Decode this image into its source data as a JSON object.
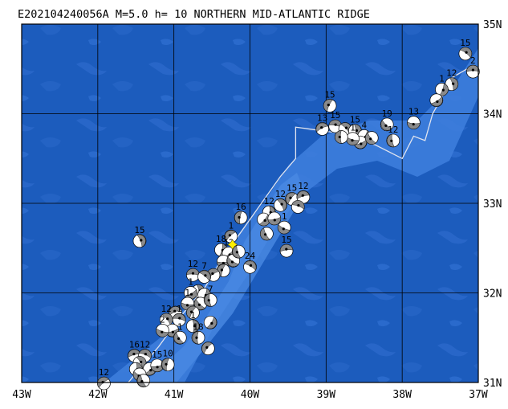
{
  "title": "E202104240056A M=5.0 h= 10 NORTHERN MID-ATLANTIC RIDGE",
  "map": {
    "lon_range": [
      -43,
      -37
    ],
    "lat_range": [
      31,
      35
    ],
    "colors": {
      "ocean_deep": "#1c5cbd",
      "ocean_shallow": "#3d7ddc",
      "grid": "#000000",
      "ridge": "#e0e4ef",
      "epicenter": "#ffef00"
    },
    "lon_ticks": [
      {
        "lon": -43,
        "label": "43W"
      },
      {
        "lon": -42,
        "label": "42W"
      },
      {
        "lon": -41,
        "label": "41W"
      },
      {
        "lon": -40,
        "label": "40W"
      },
      {
        "lon": -39,
        "label": "39W"
      },
      {
        "lon": -38,
        "label": "38W"
      },
      {
        "lon": -37,
        "label": "37W"
      }
    ],
    "lat_ticks": [
      {
        "lat": 35,
        "label": "35N"
      },
      {
        "lat": 34,
        "label": "34N"
      },
      {
        "lat": 33,
        "label": "33N"
      },
      {
        "lat": 32,
        "label": "32N"
      },
      {
        "lat": 31,
        "label": "31N"
      }
    ],
    "ridge_line": [
      [
        -41.6,
        31.0
      ],
      [
        -41.2,
        31.4
      ],
      [
        -40.9,
        31.75
      ],
      [
        -40.6,
        32.05
      ],
      [
        -40.35,
        32.4
      ],
      [
        -40.1,
        32.7
      ],
      [
        -39.85,
        33.0
      ],
      [
        -39.6,
        33.3
      ],
      [
        -39.4,
        33.5
      ],
      [
        -39.4,
        33.85
      ],
      [
        -38.8,
        33.78
      ],
      [
        -38.35,
        33.65
      ],
      [
        -38.0,
        33.5
      ],
      [
        -37.85,
        33.75
      ],
      [
        -37.7,
        33.7
      ],
      [
        -37.6,
        34.0
      ],
      [
        -37.5,
        34.15
      ],
      [
        -37.35,
        34.4
      ],
      [
        -37.15,
        34.5
      ]
    ],
    "epicenter": {
      "lon": -40.23,
      "lat": 32.54
    },
    "events": [
      {
        "lon": -37.07,
        "lat": 34.47,
        "label": "2"
      },
      {
        "lon": -37.17,
        "lat": 34.67,
        "label": "15"
      },
      {
        "lon": -37.35,
        "lat": 34.33,
        "label": "12"
      },
      {
        "lon": -37.48,
        "lat": 34.27,
        "label": "1"
      },
      {
        "lon": -37.55,
        "lat": 34.15,
        "label": ""
      },
      {
        "lon": -37.85,
        "lat": 33.9,
        "label": "13"
      },
      {
        "lon": -38.2,
        "lat": 33.88,
        "label": "19"
      },
      {
        "lon": -38.12,
        "lat": 33.7,
        "label": "12"
      },
      {
        "lon": -38.95,
        "lat": 34.09,
        "label": "15"
      },
      {
        "lon": -39.05,
        "lat": 33.83,
        "label": "13"
      },
      {
        "lon": -38.88,
        "lat": 33.86,
        "label": "15"
      },
      {
        "lon": -38.75,
        "lat": 33.83,
        "label": ""
      },
      {
        "lon": -38.62,
        "lat": 33.81,
        "label": "15"
      },
      {
        "lon": -38.5,
        "lat": 33.75,
        "label": "4"
      },
      {
        "lon": -38.55,
        "lat": 33.68,
        "label": ""
      },
      {
        "lon": -38.65,
        "lat": 33.72,
        "label": "1"
      },
      {
        "lon": -38.4,
        "lat": 33.73,
        "label": ""
      },
      {
        "lon": -38.8,
        "lat": 33.74,
        "label": ""
      },
      {
        "lon": -39.45,
        "lat": 33.05,
        "label": "15"
      },
      {
        "lon": -39.3,
        "lat": 33.07,
        "label": "12"
      },
      {
        "lon": -39.37,
        "lat": 32.96,
        "label": ""
      },
      {
        "lon": -39.6,
        "lat": 32.98,
        "label": "12"
      },
      {
        "lon": -39.75,
        "lat": 32.9,
        "label": "12"
      },
      {
        "lon": -39.82,
        "lat": 32.82,
        "label": ""
      },
      {
        "lon": -39.68,
        "lat": 32.83,
        "label": ""
      },
      {
        "lon": -39.55,
        "lat": 32.73,
        "label": "1"
      },
      {
        "lon": -39.78,
        "lat": 32.66,
        "label": ""
      },
      {
        "lon": -40.12,
        "lat": 32.84,
        "label": "16"
      },
      {
        "lon": -40.25,
        "lat": 32.63,
        "label": "1"
      },
      {
        "lon": -39.52,
        "lat": 32.47,
        "label": "15"
      },
      {
        "lon": -40.0,
        "lat": 32.29,
        "label": "24"
      },
      {
        "lon": -41.45,
        "lat": 32.58,
        "label": "15"
      },
      {
        "lon": -40.38,
        "lat": 32.48,
        "label": "18"
      },
      {
        "lon": -40.28,
        "lat": 32.44,
        "label": "12"
      },
      {
        "lon": -40.35,
        "lat": 32.35,
        "label": ""
      },
      {
        "lon": -40.22,
        "lat": 32.36,
        "label": ""
      },
      {
        "lon": -40.15,
        "lat": 32.46,
        "label": ""
      },
      {
        "lon": -40.35,
        "lat": 32.25,
        "label": ""
      },
      {
        "lon": -40.48,
        "lat": 32.2,
        "label": ""
      },
      {
        "lon": -40.75,
        "lat": 32.2,
        "label": "12"
      },
      {
        "lon": -40.6,
        "lat": 32.18,
        "label": "7"
      },
      {
        "lon": -40.68,
        "lat": 32.02,
        "label": ""
      },
      {
        "lon": -40.6,
        "lat": 31.98,
        "label": ""
      },
      {
        "lon": -40.78,
        "lat": 32.0,
        "label": "1"
      },
      {
        "lon": -40.82,
        "lat": 31.88,
        "label": "1"
      },
      {
        "lon": -40.65,
        "lat": 31.88,
        "label": ""
      },
      {
        "lon": -40.52,
        "lat": 31.92,
        "label": "7"
      },
      {
        "lon": -40.75,
        "lat": 31.78,
        "label": ""
      },
      {
        "lon": -40.98,
        "lat": 31.78,
        "label": ""
      },
      {
        "lon": -40.93,
        "lat": 31.7,
        "label": "1"
      },
      {
        "lon": -41.1,
        "lat": 31.7,
        "label": "12"
      },
      {
        "lon": -40.75,
        "lat": 31.63,
        "label": "1"
      },
      {
        "lon": -40.52,
        "lat": 31.67,
        "label": ""
      },
      {
        "lon": -41.02,
        "lat": 31.58,
        "label": ""
      },
      {
        "lon": -41.15,
        "lat": 31.58,
        "label": "2"
      },
      {
        "lon": -40.92,
        "lat": 31.5,
        "label": "1"
      },
      {
        "lon": -40.68,
        "lat": 31.5,
        "label": "18"
      },
      {
        "lon": -40.55,
        "lat": 31.38,
        "label": ""
      },
      {
        "lon": -41.52,
        "lat": 31.3,
        "label": "16"
      },
      {
        "lon": -41.38,
        "lat": 31.3,
        "label": "12"
      },
      {
        "lon": -41.45,
        "lat": 31.22,
        "label": ""
      },
      {
        "lon": -41.5,
        "lat": 31.15,
        "label": ""
      },
      {
        "lon": -41.32,
        "lat": 31.15,
        "label": ""
      },
      {
        "lon": -41.22,
        "lat": 31.19,
        "label": "15"
      },
      {
        "lon": -41.45,
        "lat": 31.09,
        "label": ""
      },
      {
        "lon": -41.4,
        "lat": 31.02,
        "label": ""
      },
      {
        "lon": -41.08,
        "lat": 31.2,
        "label": "10"
      },
      {
        "lon": -41.92,
        "lat": 30.99,
        "label": "12"
      }
    ]
  }
}
